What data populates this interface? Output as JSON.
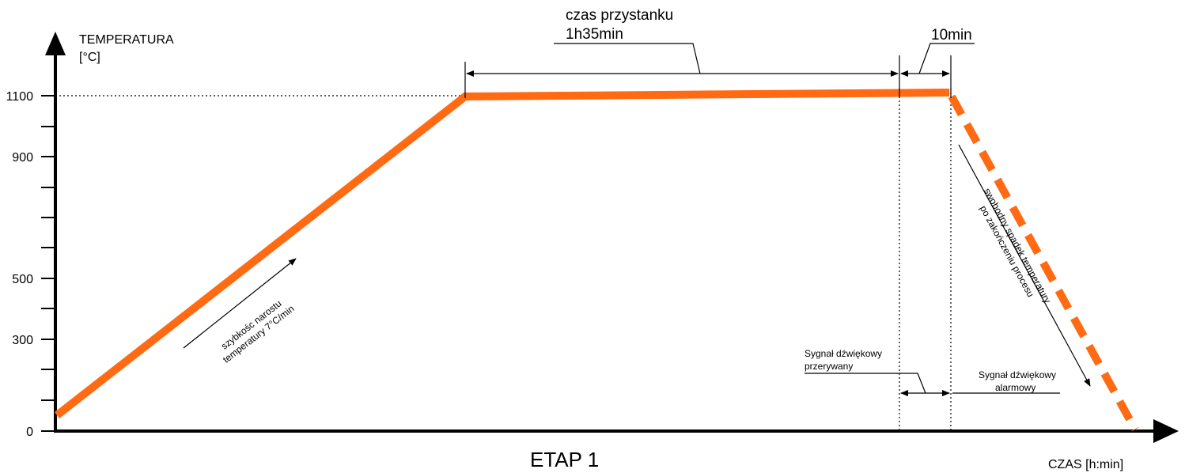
{
  "axes": {
    "y_label": [
      "TEMPERATURA",
      "[°C]"
    ],
    "x_label": "CZAS [h:min]",
    "y_ticks": [
      "1100",
      "900",
      "500",
      "300",
      "0"
    ]
  },
  "stage": "ETAP 1",
  "annotations": {
    "hold_time": [
      "czas przystanku",
      "1h35min"
    ],
    "end_time": "10min",
    "rise": [
      "szybkośc narostu",
      "temperatury 7°C/min"
    ],
    "fall": [
      "swobodny spadek temperatury",
      "po zakończeniu procesu"
    ],
    "signal_intermittent": [
      "Sygnał dźwiękowy",
      "przerywany"
    ],
    "signal_alarm": [
      "Sygnał dźwiękowy",
      "alarmowy"
    ]
  }
}
